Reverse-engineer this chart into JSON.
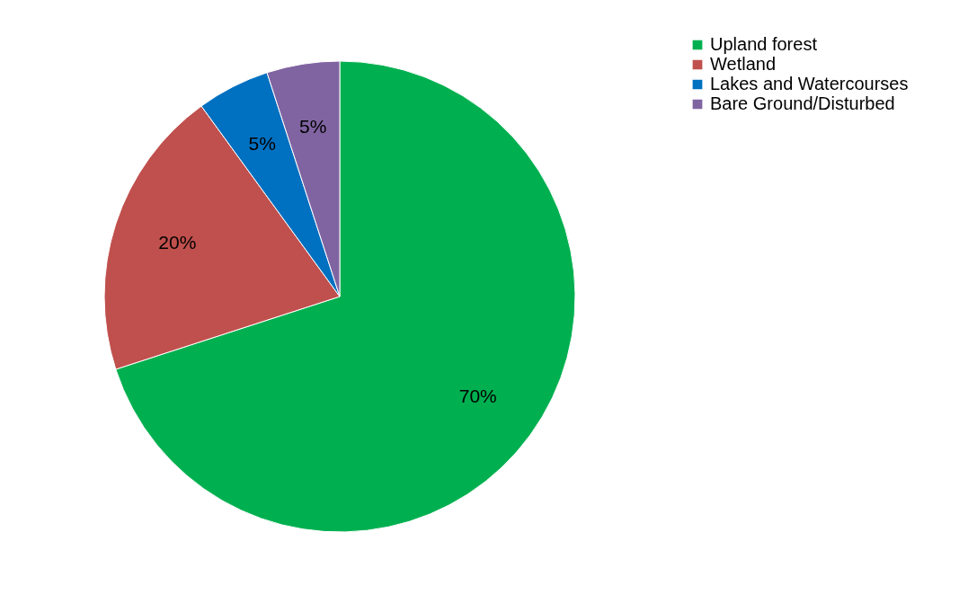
{
  "chart_data": {
    "type": "pie",
    "categories": [
      "Upland forest",
      "Wetland",
      "Lakes and Watercourses",
      "Bare Ground/Disturbed"
    ],
    "values": [
      70,
      20,
      5,
      5
    ],
    "colors": [
      "#00b050",
      "#c0504d",
      "#0070c0",
      "#8064a2"
    ],
    "value_labels": [
      "70%",
      "20%",
      "5%",
      "5%"
    ],
    "legend": "right"
  }
}
